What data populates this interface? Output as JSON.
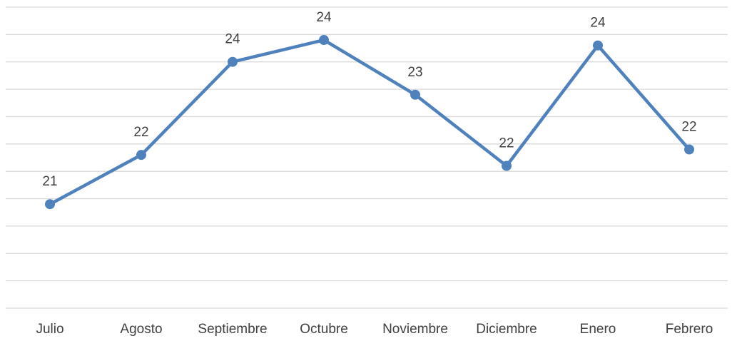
{
  "chart_data": {
    "type": "line",
    "categories": [
      "Julio",
      "Agosto",
      "Septiembre",
      "Octubre",
      "Noviembre",
      "Diciembre",
      "Enero",
      "Febrero"
    ],
    "series": [
      {
        "color": "#4f81bd",
        "values": [
          21.4,
          22.3,
          24,
          24.4,
          23.4,
          22.1,
          24.3,
          22.4
        ],
        "value_labels": [
          "21",
          "22",
          "24",
          "24",
          "23",
          "22",
          "24",
          "22"
        ]
      }
    ],
    "ylim": [
      19.5,
      25
    ],
    "yticks": [
      19.5,
      20,
      20.5,
      21,
      21.5,
      22,
      22.5,
      23,
      23.5,
      24,
      24.5,
      25
    ],
    "grid": true
  }
}
